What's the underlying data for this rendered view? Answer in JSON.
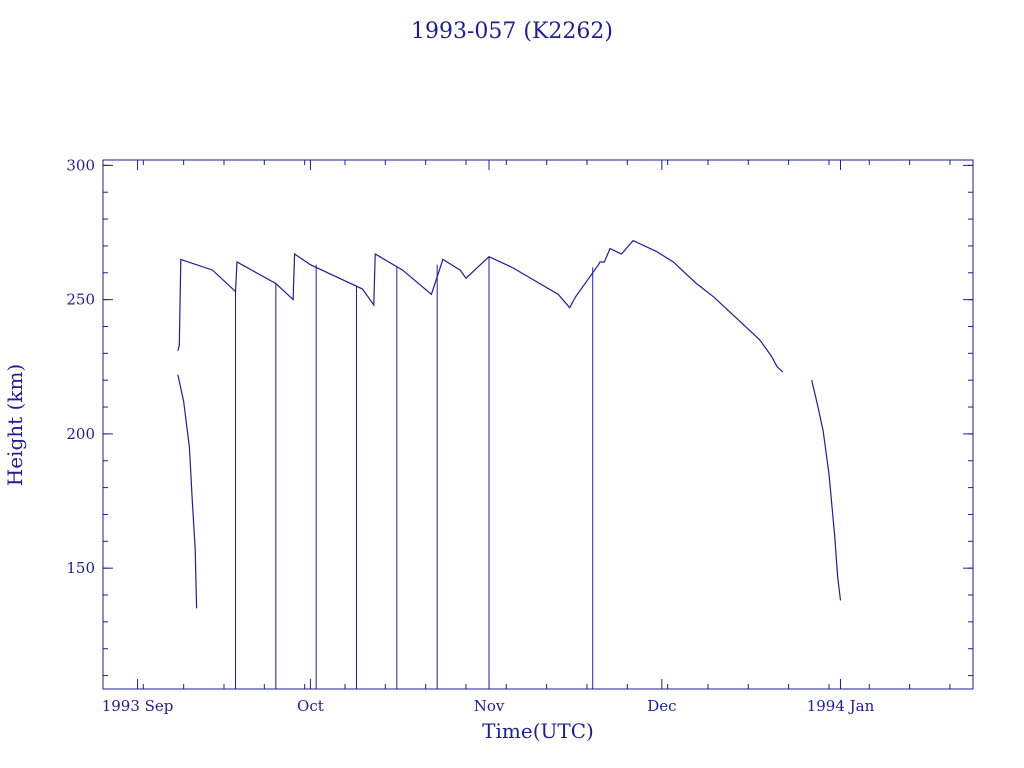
{
  "chart_data": {
    "type": "line",
    "title": "1993-057 (K2262)",
    "xlabel": "Time(UTC)",
    "ylabel": "Height (km)",
    "x_axis": {
      "kind": "date",
      "range": [
        "1993-08-26",
        "1994-01-24"
      ],
      "tick_labels": [
        {
          "date": "1993-09-01",
          "label": "1993 Sep"
        },
        {
          "date": "1993-10-01",
          "label": "Oct"
        },
        {
          "date": "1993-11-01",
          "label": "Nov"
        },
        {
          "date": "1993-12-01",
          "label": "Dec"
        },
        {
          "date": "1994-01-01",
          "label": "1994 Jan"
        }
      ]
    },
    "y_axis": {
      "range": [
        105,
        302
      ],
      "major_ticks": [
        150,
        200,
        250,
        300
      ],
      "minor_step": 10
    },
    "grid": false,
    "color": "#1f1f8f",
    "series": [
      {
        "points": [
          [
            "1993-09-08",
            222
          ],
          [
            "1993-09-09",
            212
          ],
          [
            "1993-09-10",
            195
          ],
          [
            "1993-09-10T12:00",
            175
          ],
          [
            "1993-09-11",
            157
          ],
          [
            "1993-09-11T06:00",
            135
          ]
        ]
      },
      {
        "points": [
          [
            "1993-09-08",
            231
          ],
          [
            "1993-09-08T06:00",
            233
          ],
          [
            "1993-09-08T12:00",
            265
          ],
          [
            "1993-09-14",
            261
          ],
          [
            "1993-09-18",
            253
          ],
          [
            "1993-09-18T06:00",
            264
          ],
          [
            "1993-09-25",
            256
          ],
          [
            "1993-09-28",
            250
          ],
          [
            "1993-09-28T06:00",
            267
          ],
          [
            "1993-10-01",
            263
          ],
          [
            "1993-10-04",
            260
          ],
          [
            "1993-10-10",
            254
          ],
          [
            "1993-10-12",
            248
          ],
          [
            "1993-10-12T06:00",
            267
          ],
          [
            "1993-10-17",
            261
          ],
          [
            "1993-10-22",
            252
          ],
          [
            "1993-10-24",
            265
          ],
          [
            "1993-10-27",
            261
          ],
          [
            "1993-10-28",
            258
          ],
          [
            "1993-11-01",
            266
          ],
          [
            "1993-11-05",
            262
          ],
          [
            "1993-11-13",
            252
          ],
          [
            "1993-11-15",
            247
          ],
          [
            "1993-11-16",
            251
          ],
          [
            "1993-11-20",
            263
          ],
          [
            "1993-11-20T06:00",
            264
          ],
          [
            "1993-11-21",
            264
          ],
          [
            "1993-11-22",
            269
          ],
          [
            "1993-11-24",
            267
          ],
          [
            "1993-11-26",
            272
          ],
          [
            "1993-11-30",
            268
          ],
          [
            "1993-12-03",
            264
          ],
          [
            "1993-12-05",
            260
          ],
          [
            "1993-12-07",
            256
          ],
          [
            "1993-12-10",
            251
          ],
          [
            "1993-12-14",
            243
          ],
          [
            "1993-12-18",
            235
          ],
          [
            "1993-12-20",
            229
          ],
          [
            "1993-12-21",
            225
          ],
          [
            "1993-12-22",
            223
          ]
        ]
      },
      {
        "points": [
          [
            "1993-12-27",
            220
          ],
          [
            "1993-12-28",
            211
          ],
          [
            "1993-12-29",
            201
          ],
          [
            "1993-12-30",
            185
          ],
          [
            "1993-12-31",
            162
          ],
          [
            "1993-12-31T12:00",
            147
          ],
          [
            "1994-01-01",
            138
          ]
        ]
      }
    ],
    "vertical_drops": [
      {
        "date": "1993-09-18",
        "from": 253,
        "to": 105
      },
      {
        "date": "1993-09-25",
        "from": 256,
        "to": 105
      },
      {
        "date": "1993-10-02",
        "from": 263,
        "to": 105
      },
      {
        "date": "1993-10-09",
        "from": 255,
        "to": 105
      },
      {
        "date": "1993-10-16",
        "from": 262,
        "to": 105
      },
      {
        "date": "1993-10-23",
        "from": 263,
        "to": 105
      },
      {
        "date": "1993-11-01",
        "from": 266,
        "to": 105
      },
      {
        "date": "1993-11-19",
        "from": 262,
        "to": 105
      }
    ]
  }
}
